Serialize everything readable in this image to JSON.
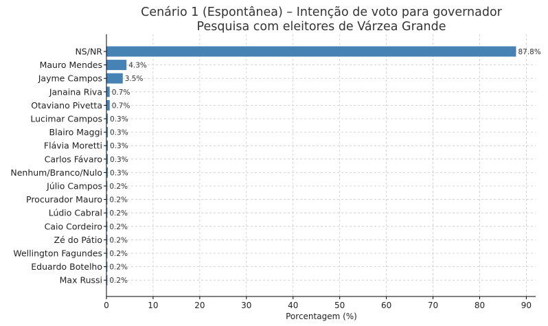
{
  "chart_data": {
    "type": "bar",
    "orientation": "horizontal",
    "title": [
      "Cenário 1 (Espontânea) – Intenção de voto para governador",
      "Pesquisa com eleitores de Várzea Grande"
    ],
    "xlabel": "Porcentagem (%)",
    "ylabel": "",
    "xlim": [
      0,
      92
    ],
    "xticks": [
      0,
      10,
      20,
      30,
      40,
      50,
      60,
      70,
      80,
      90
    ],
    "grid": true,
    "categories": [
      "NS/NR",
      "Mauro Mendes",
      "Jayme Campos",
      "Janaina Riva",
      "Otaviano Pivetta",
      "Lucimar Campos",
      "Blairo Maggi",
      "Flávia Moretti",
      "Carlos Fávaro",
      "Nenhum/Branco/Nulo",
      "Júlio Campos",
      "Procurador Mauro",
      "Lúdio Cabral",
      "Caio Cordeiro",
      "Zé do Pátio",
      "Wellington Fagundes",
      "Eduardo Botelho",
      "Max Russi"
    ],
    "values": [
      87.8,
      4.3,
      3.5,
      0.7,
      0.7,
      0.3,
      0.3,
      0.3,
      0.3,
      0.3,
      0.2,
      0.2,
      0.2,
      0.2,
      0.2,
      0.2,
      0.2,
      0.2
    ],
    "value_labels": [
      "87.8%",
      "4.3%",
      "3.5%",
      "0.7%",
      "0.7%",
      "0.3%",
      "0.3%",
      "0.3%",
      "0.3%",
      "0.3%",
      "0.2%",
      "0.2%",
      "0.2%",
      "0.2%",
      "0.2%",
      "0.2%",
      "0.2%",
      "0.2%"
    ],
    "bar_color": "#4682b4"
  }
}
